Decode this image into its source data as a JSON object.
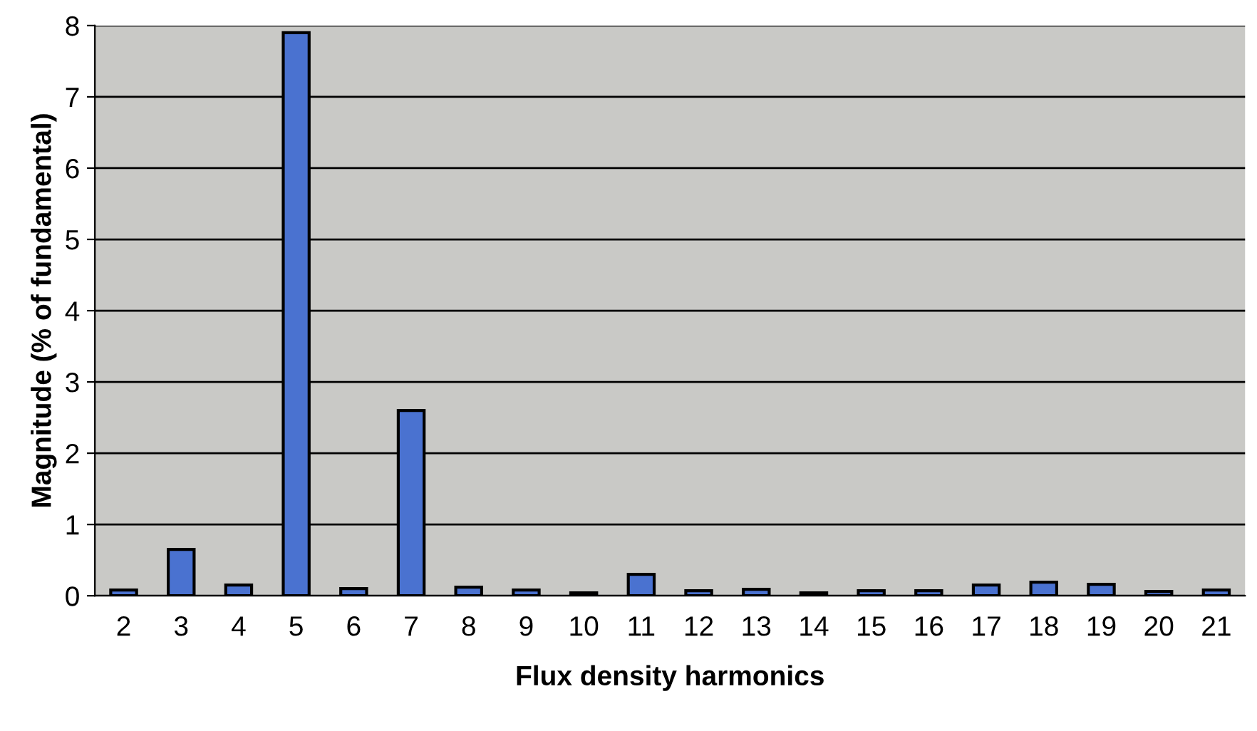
{
  "chart_data": {
    "type": "bar",
    "xlabel": "Flux density harmonics",
    "ylabel": "Magnitude (% of fundamental)",
    "categories": [
      "2",
      "3",
      "4",
      "5",
      "6",
      "7",
      "8",
      "9",
      "10",
      "11",
      "12",
      "13",
      "14",
      "15",
      "16",
      "17",
      "18",
      "19",
      "20",
      "21"
    ],
    "values": [
      0.08,
      0.65,
      0.15,
      7.9,
      0.1,
      2.6,
      0.12,
      0.08,
      0.04,
      0.3,
      0.07,
      0.09,
      0.04,
      0.07,
      0.07,
      0.15,
      0.19,
      0.16,
      0.06,
      0.08
    ],
    "color": "#4a72d0",
    "ylim": [
      0,
      8
    ],
    "yticks": [
      0,
      1,
      2,
      3,
      4,
      5,
      6,
      7,
      8
    ],
    "grid": "y",
    "legend": false
  }
}
